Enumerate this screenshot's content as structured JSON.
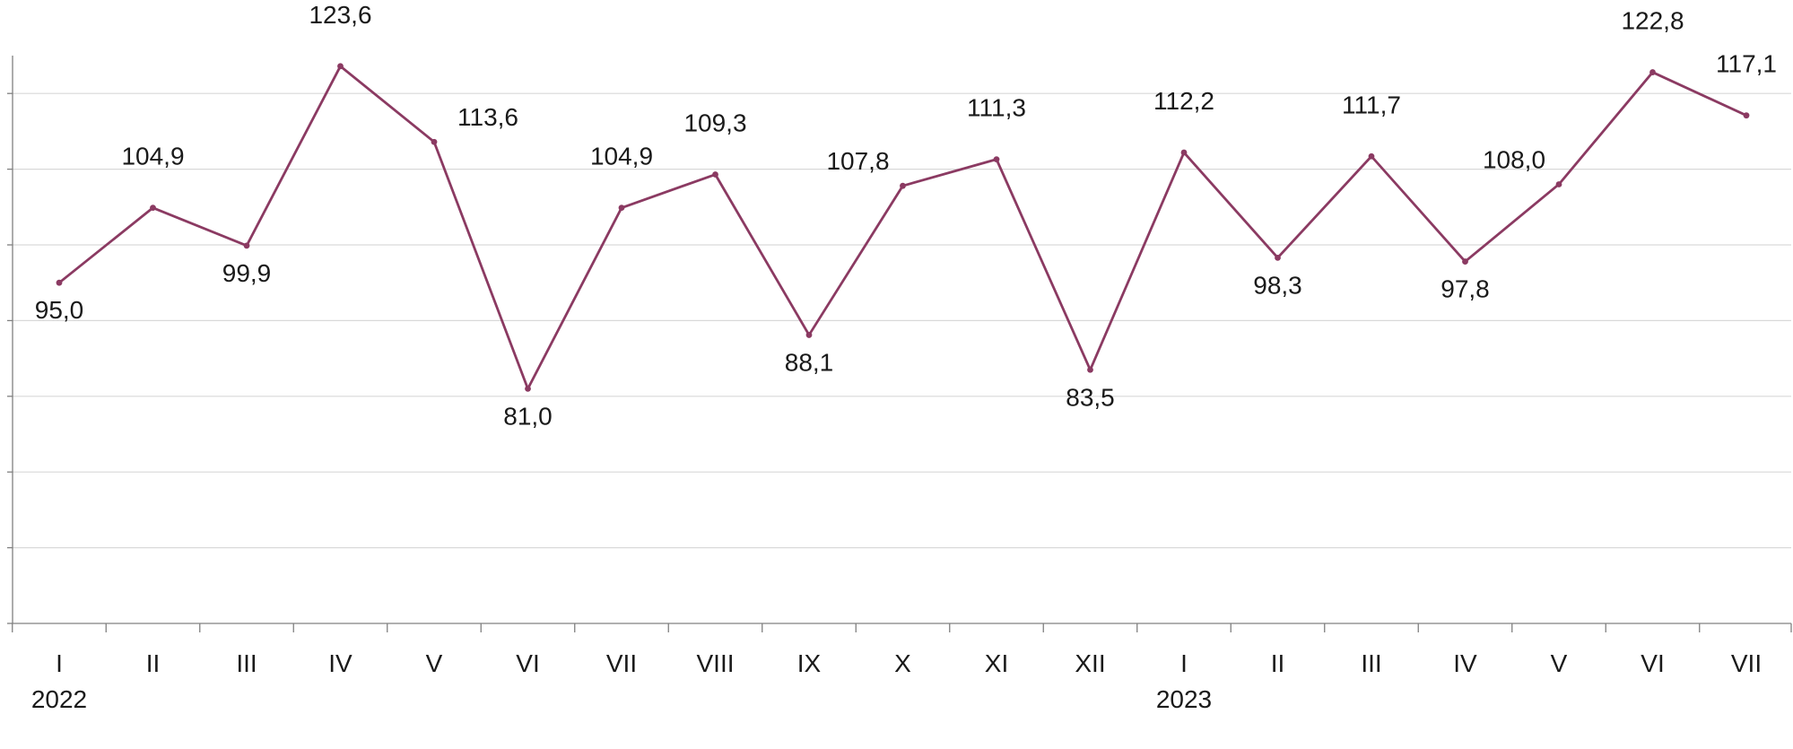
{
  "chart_data": {
    "type": "line",
    "x": [
      "I",
      "II",
      "III",
      "IV",
      "V",
      "VI",
      "VII",
      "VIII",
      "IX",
      "X",
      "XI",
      "XII",
      "I",
      "II",
      "III",
      "IV",
      "V",
      "VI",
      "VII"
    ],
    "years": [
      {
        "label": "2022",
        "index": 0
      },
      {
        "label": "2023",
        "index": 12
      }
    ],
    "series": [
      {
        "values": [
          95.0,
          104.9,
          99.9,
          123.6,
          113.6,
          81.0,
          104.9,
          109.3,
          88.1,
          107.8,
          111.3,
          83.5,
          112.2,
          98.3,
          111.7,
          97.8,
          108.0,
          122.8,
          117.1
        ],
        "labels": [
          "95,0",
          "104,9",
          "99,9",
          "123,6",
          "113,6",
          "81,0",
          "104,9",
          "109,3",
          "88,1",
          "107,8",
          "111,3",
          "83,5",
          "112,2",
          "98,3",
          "111,7",
          "97,8",
          "108,0",
          "122,8",
          "117,1"
        ],
        "label_position": [
          "below",
          "above",
          "below",
          "above",
          "above-right",
          "below",
          "above",
          "above",
          "below",
          "above-left",
          "above",
          "below",
          "above",
          "below",
          "above",
          "below",
          "above-left",
          "above",
          "above"
        ]
      }
    ],
    "ylim": [
      50,
      125
    ],
    "y_gridlines": [
      60,
      70,
      80,
      90,
      100,
      110,
      120
    ],
    "y_tick_labels_shown": false,
    "grid": true,
    "legend": "none",
    "colors": {
      "line": "#8b3a62",
      "grid": "#d9d9d9",
      "axis": "#808080"
    }
  }
}
